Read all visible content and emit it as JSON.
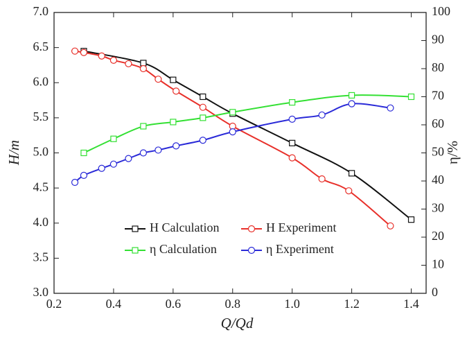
{
  "chart_data": {
    "type": "line",
    "x_label": "Q/Qd",
    "y_label": "H/m",
    "y2_label": "η/%",
    "xlim": [
      0.2,
      1.45
    ],
    "xticks": [
      0.2,
      0.4,
      0.6,
      0.8,
      {
        "value": 1,
        "label": "1.0"
      },
      1.2,
      1.4
    ],
    "ylim": [
      3,
      7
    ],
    "yticks": [
      {
        "value": 3,
        "label": "3.0"
      },
      3.5,
      {
        "value": 4,
        "label": "4.0"
      },
      4.5,
      {
        "value": 5,
        "label": "5.0"
      },
      5.5,
      {
        "value": 6,
        "label": "6.0"
      },
      6.5,
      {
        "value": 7,
        "label": "7.0"
      }
    ],
    "y2lim": [
      0,
      100
    ],
    "y2ticks": [
      0,
      10,
      20,
      30,
      40,
      50,
      60,
      70,
      80,
      90,
      100
    ],
    "series": [
      {
        "name": "H Calculation",
        "color": "#111111",
        "marker": "square",
        "x": [
          0.3,
          0.5,
          0.6,
          0.7,
          0.8,
          1.0,
          1.2,
          1.4
        ],
        "values": [
          6.45,
          6.28,
          6.04,
          5.8,
          5.56,
          5.14,
          4.71,
          4.05
        ]
      },
      {
        "name": "H Experiment",
        "color": "#e8302a",
        "marker": "circle",
        "x": [
          0.27,
          0.3,
          0.36,
          0.4,
          0.45,
          0.5,
          0.55,
          0.61,
          0.7,
          0.8,
          1.0,
          1.1,
          1.19,
          1.33
        ],
        "values": [
          6.45,
          6.43,
          6.38,
          6.32,
          6.27,
          6.2,
          6.05,
          5.88,
          5.65,
          5.38,
          4.93,
          4.63,
          4.46,
          3.96
        ]
      },
      {
        "name": "η Calculation",
        "color": "#33e033",
        "marker": "square",
        "axis": "y2",
        "x": [
          0.3,
          0.4,
          0.5,
          0.6,
          0.7,
          0.8,
          1.0,
          1.2,
          1.4
        ],
        "values": [
          50,
          55,
          59.5,
          61,
          62.5,
          64.5,
          68,
          70.5,
          70
        ]
      },
      {
        "name": "η Experiment",
        "color": "#2a2ad8",
        "marker": "circle",
        "axis": "y2",
        "x": [
          0.27,
          0.3,
          0.36,
          0.4,
          0.45,
          0.5,
          0.55,
          0.61,
          0.7,
          0.8,
          1.0,
          1.1,
          1.2,
          1.33
        ],
        "values": [
          39.5,
          42,
          44.5,
          46,
          48,
          50,
          51,
          52.5,
          54.5,
          57.5,
          62,
          63.5,
          67.5,
          66
        ]
      }
    ]
  }
}
